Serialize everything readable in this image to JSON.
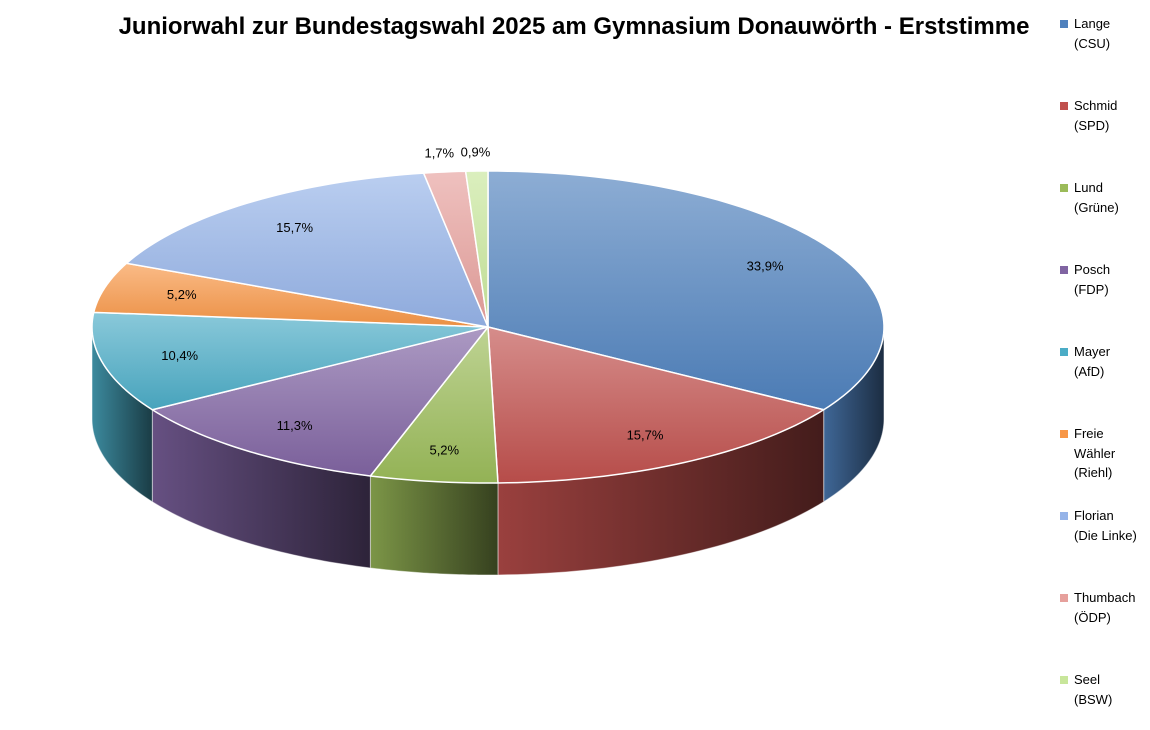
{
  "chart_data": {
    "type": "pie",
    "title": "Juniorwahl zur Bundestagswahl 2025 am Gymnasium Donauwörth - Erststimme",
    "slices": [
      {
        "label": "Lange (CSU)",
        "legend": [
          "Lange",
          "(CSU)"
        ],
        "value": 33.9,
        "label_text": "33,9%",
        "color": "#4f81bd"
      },
      {
        "label": "Schmid (SPD)",
        "legend": [
          "Schmid",
          "(SPD)"
        ],
        "value": 15.7,
        "label_text": "15,7%",
        "color": "#c0504d"
      },
      {
        "label": "Lund (Grüne)",
        "legend": [
          "Lund",
          "(Grüne)"
        ],
        "value": 5.2,
        "label_text": "5,2%",
        "color": "#9bbb59"
      },
      {
        "label": "Posch (FDP)",
        "legend": [
          "Posch",
          "(FDP)"
        ],
        "value": 11.3,
        "label_text": "11,3%",
        "color": "#8064a2"
      },
      {
        "label": "Mayer (AfD)",
        "legend": [
          "Mayer",
          "(AfD)"
        ],
        "value": 10.4,
        "label_text": "10,4%",
        "color": "#4bacc6"
      },
      {
        "label": "Freie Wähler (Riehl)",
        "legend": [
          "Freie",
          "Wähler",
          "(Riehl)"
        ],
        "value": 5.2,
        "label_text": "5,2%",
        "color": "#f79646"
      },
      {
        "label": "Florian (Die Linke)",
        "legend": [
          "Florian",
          "(Die Linke)"
        ],
        "value": 15.7,
        "label_text": "15,7%",
        "color": "#95b3e8"
      },
      {
        "label": "Thumbach (ÖDP)",
        "legend": [
          "Thumbach",
          "(ÖDP)"
        ],
        "value": 1.7,
        "label_text": "1,7%",
        "color": "#e6a09c"
      },
      {
        "label": "Seel (BSW)",
        "legend": [
          "Seel",
          "(BSW)"
        ],
        "value": 0.9,
        "label_text": "0,9%",
        "color": "#c8e69b"
      }
    ],
    "legend_position": "right",
    "style": "3d"
  }
}
